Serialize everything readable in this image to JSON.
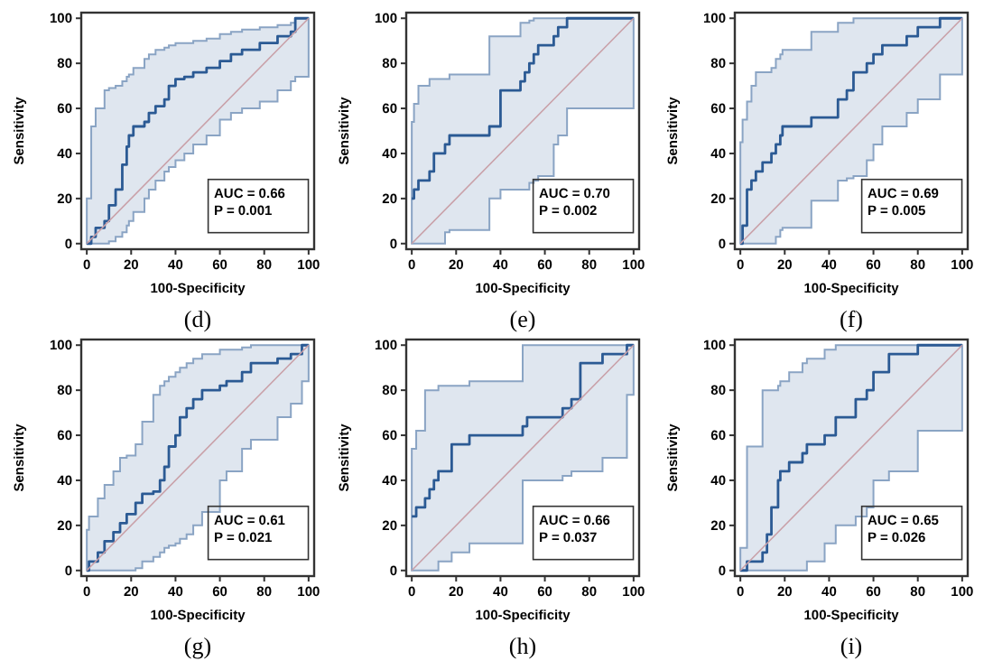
{
  "chart_data": [
    {
      "type": "step",
      "title": "(d)",
      "xlabel": "100-Specificity",
      "ylabel": "Sensitivity",
      "xlim": [
        -2.5,
        102.5
      ],
      "ylim": [
        -2.5,
        102.5
      ],
      "xticks": [
        0,
        20,
        40,
        60,
        80,
        100
      ],
      "yticks": [
        0,
        20,
        40,
        60,
        80,
        100
      ],
      "annotations": [
        "AUC = 0.66",
        "P = 0.001"
      ],
      "series": [
        {
          "color": "#2b5a94",
          "x": [
            0,
            2,
            4,
            8,
            10,
            13,
            16,
            18,
            19,
            21,
            26,
            28,
            31,
            35,
            37,
            40,
            44,
            48,
            54,
            60,
            65,
            70,
            78,
            86,
            92,
            94,
            100
          ],
          "values": [
            0,
            3,
            7,
            10,
            17,
            24,
            35,
            43,
            48,
            52,
            54,
            58,
            61,
            64,
            70,
            73,
            74,
            76,
            78,
            81,
            84,
            86,
            89,
            92,
            94,
            100,
            100
          ],
          "lower": [
            0,
            0,
            0,
            0,
            1,
            3,
            5,
            8,
            10,
            14,
            20,
            24,
            28,
            32,
            34,
            37,
            40,
            44,
            48,
            55,
            58,
            60,
            63,
            68,
            72,
            74,
            90
          ],
          "upper": [
            20,
            52,
            60,
            68,
            69,
            70,
            72,
            74,
            75,
            78,
            82,
            84,
            86,
            87,
            88,
            89,
            89,
            90,
            91,
            93,
            94,
            95,
            96,
            97,
            98,
            100,
            100
          ]
        },
        {
          "type": "line",
          "color": "#c9a0a8",
          "x": [
            0,
            100
          ],
          "values": [
            0,
            100
          ]
        }
      ]
    },
    {
      "type": "step",
      "title": "(e)",
      "xlabel": "100-Specificity",
      "ylabel": "Sensitivity",
      "xlim": [
        -2.5,
        102.5
      ],
      "ylim": [
        -2.5,
        102.5
      ],
      "xticks": [
        0,
        20,
        40,
        60,
        80,
        100
      ],
      "yticks": [
        0,
        20,
        40,
        60,
        80,
        100
      ],
      "annotations": [
        "AUC = 0.70",
        "P = 0.002"
      ],
      "series": [
        {
          "color": "#2b5a94",
          "x": [
            0,
            1,
            3,
            8,
            10,
            15,
            17,
            35,
            40,
            49,
            51,
            53,
            55,
            57,
            64,
            66,
            70,
            100
          ],
          "values": [
            20,
            24,
            28,
            32,
            40,
            44,
            48,
            52,
            68,
            72,
            76,
            80,
            84,
            88,
            92,
            96,
            100,
            100
          ],
          "lower": [
            0,
            0,
            0,
            0,
            0,
            5,
            6,
            20,
            24,
            24,
            24,
            27,
            28,
            30,
            44,
            48,
            60,
            82
          ],
          "upper": [
            54,
            62,
            70,
            73,
            73,
            73,
            75,
            92,
            92,
            98,
            98,
            99,
            100,
            100,
            100,
            100,
            100,
            100
          ]
        },
        {
          "type": "line",
          "color": "#c9a0a8",
          "x": [
            0,
            100
          ],
          "values": [
            0,
            100
          ]
        }
      ]
    },
    {
      "type": "step",
      "title": "(f)",
      "xlabel": "100-Specificity",
      "ylabel": "Sensitivity",
      "xlim": [
        -2.5,
        102.5
      ],
      "ylim": [
        -2.5,
        102.5
      ],
      "xticks": [
        0,
        20,
        40,
        60,
        80,
        100
      ],
      "yticks": [
        0,
        20,
        40,
        60,
        80,
        100
      ],
      "annotations": [
        "AUC = 0.69",
        "P = 0.005"
      ],
      "series": [
        {
          "color": "#2b5a94",
          "x": [
            0,
            1,
            3,
            5,
            7,
            10,
            14,
            16,
            18,
            19,
            32,
            44,
            48,
            51,
            57,
            60,
            64,
            75,
            80,
            90,
            100
          ],
          "values": [
            0,
            8,
            24,
            28,
            32,
            36,
            40,
            44,
            48,
            52,
            56,
            64,
            68,
            76,
            80,
            84,
            88,
            92,
            96,
            100,
            100
          ],
          "lower": [
            0,
            0,
            0,
            0,
            0,
            0,
            0,
            3,
            6,
            7,
            19,
            28,
            29,
            30,
            37,
            44,
            52,
            58,
            64,
            75,
            82
          ],
          "upper": [
            45,
            55,
            63,
            70,
            76,
            76,
            78,
            82,
            84,
            86,
            94,
            98,
            98,
            100,
            100,
            100,
            100,
            100,
            100,
            100,
            100
          ]
        },
        {
          "type": "line",
          "color": "#c9a0a8",
          "x": [
            0,
            100
          ],
          "values": [
            0,
            100
          ]
        }
      ]
    },
    {
      "type": "step",
      "title": "(g)",
      "xlabel": "100-Specificity",
      "ylabel": "Sensitivity",
      "xlim": [
        -2.5,
        102.5
      ],
      "ylim": [
        -2.5,
        102.5
      ],
      "xticks": [
        0,
        20,
        40,
        60,
        80,
        100
      ],
      "yticks": [
        0,
        20,
        40,
        60,
        80,
        100
      ],
      "annotations": [
        "AUC = 0.61",
        "P = 0.021"
      ],
      "series": [
        {
          "color": "#2b5a94",
          "x": [
            0,
            1,
            5,
            8,
            12,
            15,
            18,
            22,
            25,
            30,
            33,
            35,
            37,
            40,
            42,
            45,
            48,
            52,
            60,
            63,
            70,
            74,
            86,
            92,
            97,
            100
          ],
          "values": [
            0,
            4,
            8,
            13,
            17,
            21,
            25,
            30,
            34,
            35,
            40,
            46,
            55,
            60,
            68,
            72,
            76,
            80,
            82,
            84,
            88,
            92,
            94,
            96,
            100,
            100
          ],
          "lower": [
            0,
            0,
            0,
            0,
            0,
            0,
            0,
            1,
            4,
            6,
            8,
            10,
            11,
            12,
            14,
            16,
            20,
            26,
            40,
            44,
            54,
            58,
            68,
            74,
            84,
            90
          ],
          "upper": [
            18,
            24,
            32,
            38,
            44,
            50,
            51,
            56,
            66,
            78,
            82,
            84,
            86,
            88,
            90,
            92,
            94,
            96,
            98,
            98,
            99,
            100,
            100,
            100,
            100,
            100
          ]
        },
        {
          "type": "line",
          "color": "#c9a0a8",
          "x": [
            0,
            100
          ],
          "values": [
            0,
            100
          ]
        }
      ]
    },
    {
      "type": "step",
      "title": "(h)",
      "xlabel": "100-Specificity",
      "ylabel": "Sensitivity",
      "xlim": [
        -2.5,
        102.5
      ],
      "ylim": [
        -2.5,
        102.5
      ],
      "xticks": [
        0,
        20,
        40,
        60,
        80,
        100
      ],
      "yticks": [
        0,
        20,
        40,
        60,
        80,
        100
      ],
      "annotations": [
        "AUC = 0.66",
        "P = 0.037"
      ],
      "series": [
        {
          "color": "#2b5a94",
          "x": [
            0,
            2,
            6,
            8,
            10,
            12,
            18,
            26,
            50,
            52,
            68,
            72,
            76,
            86,
            97,
            100
          ],
          "values": [
            24,
            28,
            32,
            36,
            40,
            44,
            56,
            60,
            64,
            68,
            72,
            76,
            92,
            96,
            100,
            100
          ],
          "lower": [
            0,
            0,
            0,
            0,
            0,
            4,
            8,
            12,
            40,
            40,
            42,
            44,
            44,
            50,
            78,
            80
          ],
          "upper": [
            54,
            62,
            80,
            80,
            80,
            82,
            82,
            84,
            100,
            100,
            100,
            100,
            100,
            100,
            100,
            100
          ]
        },
        {
          "type": "line",
          "color": "#c9a0a8",
          "x": [
            0,
            100
          ],
          "values": [
            0,
            100
          ]
        }
      ]
    },
    {
      "type": "step",
      "title": "(i)",
      "xlabel": "100-Specificity",
      "ylabel": "Sensitivity",
      "xlim": [
        -2.5,
        102.5
      ],
      "ylim": [
        -2.5,
        102.5
      ],
      "xticks": [
        0,
        20,
        40,
        60,
        80,
        100
      ],
      "yticks": [
        0,
        20,
        40,
        60,
        80,
        100
      ],
      "annotations": [
        "AUC = 0.65",
        "P = 0.026"
      ],
      "series": [
        {
          "color": "#2b5a94",
          "x": [
            0,
            3,
            10,
            12,
            14,
            17,
            18,
            22,
            28,
            30,
            38,
            43,
            52,
            57,
            60,
            67,
            80,
            100
          ],
          "values": [
            0,
            4,
            8,
            16,
            28,
            40,
            44,
            48,
            52,
            56,
            60,
            68,
            76,
            80,
            88,
            96,
            100,
            100
          ],
          "lower": [
            0,
            0,
            0,
            0,
            0,
            0,
            0,
            0,
            0,
            4,
            12,
            20,
            24,
            28,
            40,
            44,
            62,
            82
          ],
          "upper": [
            10,
            55,
            80,
            80,
            80,
            82,
            84,
            88,
            92,
            94,
            98,
            100,
            100,
            100,
            100,
            100,
            100,
            100
          ]
        },
        {
          "type": "line",
          "color": "#c9a0a8",
          "x": [
            0,
            100
          ],
          "values": [
            0,
            100
          ]
        }
      ]
    }
  ]
}
